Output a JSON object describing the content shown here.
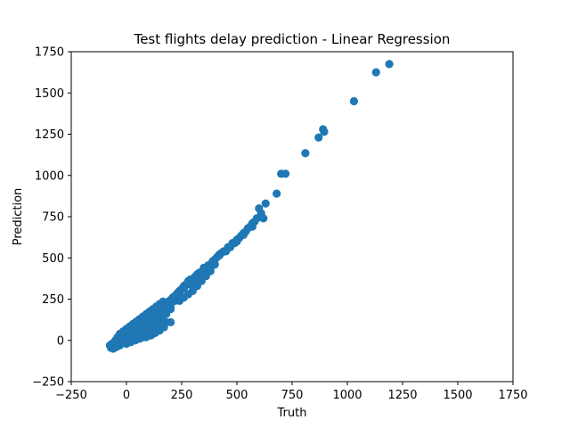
{
  "chart_data": {
    "type": "scatter",
    "title": "Test flights delay prediction - Linear Regression",
    "xlabel": "Truth",
    "ylabel": "Prediction",
    "xlim": [
      -250,
      1750
    ],
    "ylim": [
      -250,
      1750
    ],
    "xticks": [
      -250,
      0,
      250,
      500,
      750,
      1000,
      1250,
      1500,
      1750
    ],
    "yticks": [
      -250,
      0,
      250,
      500,
      750,
      1000,
      1250,
      1500,
      1750
    ],
    "xtick_labels": [
      "−250",
      "0",
      "250",
      "500",
      "750",
      "1000",
      "1250",
      "1500",
      "1750"
    ],
    "ytick_labels": [
      "−250",
      "0",
      "250",
      "500",
      "750",
      "1000",
      "1250",
      "1500",
      "1750"
    ],
    "grid": false,
    "marker_color": "#1f77b4",
    "series": [
      {
        "x": [
          -75,
          -60,
          -50,
          -40,
          -30,
          -20,
          -10,
          0,
          10,
          20,
          30,
          40,
          50,
          60,
          70,
          80,
          90,
          100,
          110,
          120,
          -70,
          -55,
          -45,
          -35,
          -25,
          -15,
          -5,
          5,
          15,
          25,
          35,
          45,
          55,
          65,
          75,
          85,
          95,
          105,
          115,
          125,
          -65,
          -50,
          -40,
          -30,
          -20,
          -10,
          0,
          10,
          20,
          30,
          40,
          50,
          60,
          70,
          80,
          90,
          100,
          110,
          120,
          130,
          -60,
          -45,
          -30,
          -15,
          0,
          15,
          30,
          45,
          60,
          75,
          90,
          105,
          120,
          135,
          -50,
          -35,
          -20,
          -5,
          10,
          25,
          40,
          55,
          70,
          85,
          100,
          115,
          130,
          145,
          -40,
          -25,
          -10,
          5,
          20,
          35,
          50,
          65,
          80,
          95,
          110,
          125,
          140,
          155,
          -30,
          -15,
          0,
          15,
          30,
          45,
          60,
          75,
          90,
          105,
          120,
          135,
          150,
          165,
          0,
          20,
          40,
          60,
          80,
          100,
          120,
          140,
          160,
          180,
          20,
          40,
          60,
          80,
          100,
          120,
          140,
          160,
          180,
          200,
          40,
          60,
          80,
          100,
          120,
          140,
          160,
          180,
          200,
          220,
          60,
          80,
          100,
          120,
          140,
          160,
          180,
          200,
          220,
          240,
          100,
          120,
          140,
          160,
          180,
          200,
          220,
          240,
          260,
          280,
          130,
          150,
          170,
          190,
          210,
          230,
          250,
          270,
          290,
          160,
          180,
          200,
          220,
          240,
          260,
          280,
          300,
          320,
          210,
          230,
          250,
          270,
          290,
          310,
          330,
          350,
          90,
          110,
          130,
          150,
          170,
          200,
          240,
          260,
          280,
          300,
          320,
          340,
          360,
          380,
          300,
          320,
          340,
          360,
          380,
          400,
          350,
          370,
          390,
          410,
          430,
          400,
          420,
          440,
          460,
          480,
          450,
          470,
          490,
          510,
          530,
          500,
          520,
          540,
          560,
          580,
          550,
          570,
          590,
          610,
          380,
          420,
          500,
          530,
          570,
          620,
          600,
          630,
          680,
          700,
          720,
          810,
          870,
          890,
          895,
          1030,
          1130,
          1190
        ],
        "y": [
          -30,
          -25,
          -20,
          -15,
          -10,
          -5,
          0,
          5,
          10,
          15,
          20,
          25,
          30,
          35,
          40,
          45,
          50,
          55,
          60,
          65,
          -45,
          -40,
          -35,
          -25,
          -20,
          -10,
          -5,
          0,
          10,
          15,
          25,
          30,
          40,
          45,
          55,
          60,
          70,
          75,
          85,
          90,
          -20,
          -10,
          0,
          10,
          20,
          30,
          40,
          50,
          60,
          70,
          80,
          90,
          100,
          110,
          120,
          130,
          140,
          150,
          160,
          170,
          -50,
          -40,
          -30,
          -15,
          -5,
          5,
          15,
          25,
          35,
          45,
          55,
          65,
          75,
          85,
          0,
          10,
          20,
          35,
          50,
          65,
          80,
          95,
          110,
          125,
          140,
          155,
          170,
          185,
          20,
          35,
          50,
          65,
          80,
          95,
          110,
          125,
          140,
          155,
          170,
          185,
          200,
          215,
          40,
          55,
          70,
          85,
          100,
          115,
          130,
          145,
          160,
          175,
          190,
          205,
          220,
          235,
          -20,
          -10,
          0,
          10,
          20,
          30,
          40,
          60,
          80,
          110,
          0,
          15,
          30,
          45,
          60,
          80,
          100,
          130,
          160,
          190,
          30,
          50,
          70,
          90,
          110,
          130,
          150,
          180,
          210,
          240,
          50,
          75,
          100,
          125,
          150,
          175,
          200,
          230,
          260,
          290,
          120,
          145,
          170,
          195,
          220,
          245,
          270,
          300,
          330,
          360,
          160,
          185,
          210,
          235,
          260,
          285,
          310,
          340,
          370,
          190,
          215,
          240,
          265,
          290,
          315,
          340,
          370,
          400,
          260,
          285,
          310,
          335,
          360,
          385,
          410,
          440,
          20,
          30,
          45,
          60,
          80,
          110,
          240,
          260,
          280,
          300,
          330,
          360,
          390,
          420,
          330,
          355,
          380,
          405,
          430,
          460,
          430,
          455,
          480,
          505,
          530,
          490,
          515,
          540,
          565,
          590,
          540,
          565,
          590,
          620,
          650,
          610,
          635,
          660,
          690,
          720,
          680,
          710,
          740,
          770,
          460,
          520,
          600,
          640,
          690,
          740,
          800,
          830,
          890,
          1010,
          1010,
          1135,
          1230,
          1280,
          1265,
          1450,
          1625,
          1675
        ]
      }
    ]
  }
}
